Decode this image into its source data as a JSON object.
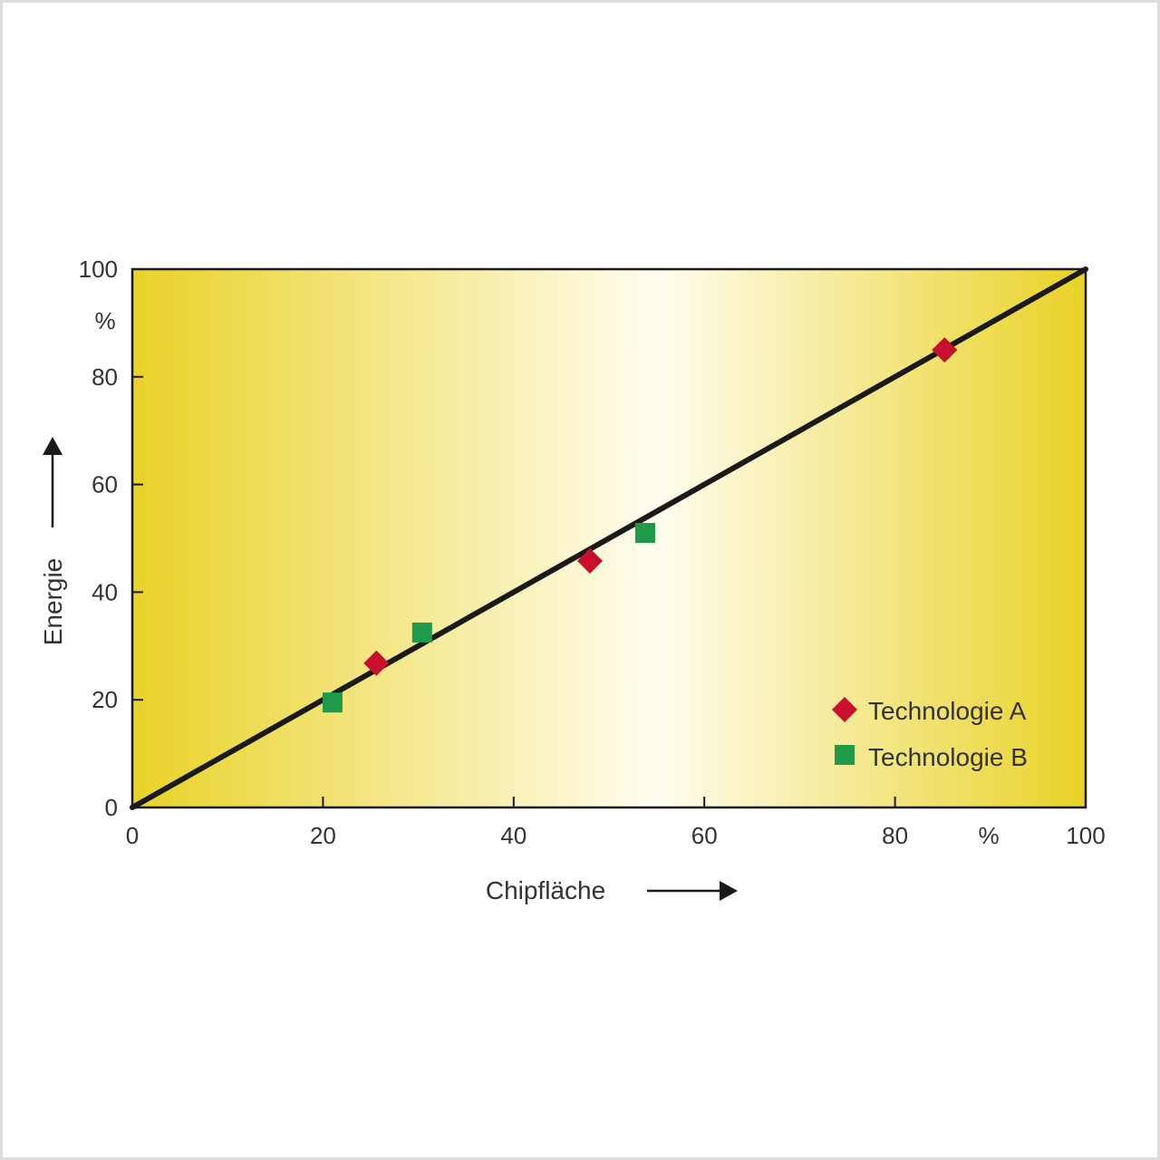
{
  "chart_data": {
    "type": "scatter",
    "xlabel": "Chipfläche",
    "ylabel": "Energie",
    "xunit": "%",
    "yunit": "%",
    "xlim": [
      0,
      100
    ],
    "ylim": [
      0,
      100
    ],
    "x_ticks": [
      0,
      20,
      40,
      60,
      80,
      100
    ],
    "y_ticks": [
      0,
      20,
      40,
      60,
      80,
      100
    ],
    "grid": false,
    "legend_position": "bottom-right",
    "background": "yellow-white horizontal gradient",
    "colors": {
      "background_edge": "#e9d227",
      "background_center": "#fffdf0",
      "series_a": "#c8102e",
      "series_b": "#1e9a4a",
      "line": "#1a1a1a"
    },
    "reference_line": {
      "x": [
        0,
        100
      ],
      "y": [
        0,
        100
      ]
    },
    "series": [
      {
        "name": "Technologie A",
        "marker": "diamond",
        "x": [
          25.6,
          48.0,
          85.2
        ],
        "y": [
          26.8,
          45.8,
          85.0
        ]
      },
      {
        "name": "Technologie B",
        "marker": "square",
        "x": [
          21.0,
          30.4,
          53.8
        ],
        "y": [
          19.5,
          32.5,
          51.0
        ]
      }
    ]
  }
}
